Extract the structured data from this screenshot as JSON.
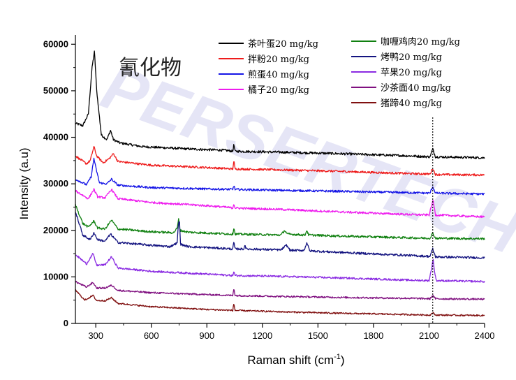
{
  "chart_data": {
    "type": "line",
    "title": "氰化物",
    "xlabel": "Raman shift (cm",
    "xlabel_sup": "-1",
    "xlabel_end": ")",
    "ylabel": "Intensity (a.u)",
    "xlim": [
      190,
      2400
    ],
    "ylim": [
      0,
      62000
    ],
    "xticks": [
      300,
      600,
      900,
      1200,
      1500,
      1800,
      2100,
      2400
    ],
    "yticks": [
      0,
      10000,
      20000,
      30000,
      40000,
      50000,
      60000
    ],
    "ytick_labels": [
      "0",
      "10000",
      "20000",
      "30000",
      "40000",
      "50000",
      "60000"
    ],
    "xtick_labels": [
      "300",
      "600",
      "900",
      "1200",
      "1500",
      "1800",
      "2100",
      "2400"
    ],
    "reference_line_x": 2120,
    "watermark": "PERSERTECH",
    "legend_left": [
      {
        "name": "茶叶蛋20 mg/kg",
        "color": "#000000"
      },
      {
        "name": "拌粉20 mg/kg",
        "color": "#ee1c1c"
      },
      {
        "name": "煎蛋40 mg/kg",
        "color": "#1414e6"
      },
      {
        "name": "橘子20 mg/kg",
        "color": "#ee1cee"
      }
    ],
    "legend_right": [
      {
        "name": "咖喱鸡肉20 mg/kg",
        "color": "#108010"
      },
      {
        "name": "烤鸭20 mg/kg",
        "color": "#141480"
      },
      {
        "name": "苹果20 mg/kg",
        "color": "#8a2be2"
      },
      {
        "name": "沙茶面40 mg/kg",
        "color": "#801080"
      },
      {
        "name": "猪蹄40 mg/kg",
        "color": "#801010"
      }
    ],
    "series": [
      {
        "name": "茶叶蛋20 mg/kg",
        "color": "#000000",
        "noise": 250,
        "points": [
          [
            190,
            43000
          ],
          [
            230,
            42500
          ],
          [
            260,
            45000
          ],
          [
            280,
            55000
          ],
          [
            293,
            58500
          ],
          [
            305,
            50000
          ],
          [
            330,
            40500
          ],
          [
            360,
            39500
          ],
          [
            380,
            41500
          ],
          [
            395,
            39500
          ],
          [
            430,
            38800
          ],
          [
            550,
            38000
          ],
          [
            800,
            37500
          ],
          [
            1000,
            37200
          ],
          [
            1040,
            37000
          ],
          [
            1046,
            38500
          ],
          [
            1052,
            37000
          ],
          [
            1300,
            36800
          ],
          [
            1600,
            36500
          ],
          [
            2000,
            36000
          ],
          [
            2105,
            35800
          ],
          [
            2120,
            37500
          ],
          [
            2135,
            35800
          ],
          [
            2400,
            35600
          ]
        ]
      },
      {
        "name": "拌粉20 mg/kg",
        "color": "#ee1c1c",
        "noise": 220,
        "points": [
          [
            190,
            36000
          ],
          [
            250,
            34300
          ],
          [
            270,
            35000
          ],
          [
            290,
            38000
          ],
          [
            305,
            36000
          ],
          [
            340,
            34500
          ],
          [
            375,
            35500
          ],
          [
            395,
            36500
          ],
          [
            420,
            34800
          ],
          [
            600,
            34000
          ],
          [
            900,
            33500
          ],
          [
            1040,
            33200
          ],
          [
            1046,
            35000
          ],
          [
            1052,
            33200
          ],
          [
            1300,
            33000
          ],
          [
            1600,
            32700
          ],
          [
            2000,
            32200
          ],
          [
            2105,
            32100
          ],
          [
            2120,
            33300
          ],
          [
            2135,
            32000
          ],
          [
            2400,
            31900
          ]
        ]
      },
      {
        "name": "煎蛋40 mg/kg",
        "color": "#1414e6",
        "noise": 220,
        "points": [
          [
            190,
            31000
          ],
          [
            250,
            29800
          ],
          [
            275,
            31500
          ],
          [
            290,
            35500
          ],
          [
            300,
            33500
          ],
          [
            320,
            30200
          ],
          [
            360,
            30000
          ],
          [
            385,
            31000
          ],
          [
            420,
            29700
          ],
          [
            600,
            29200
          ],
          [
            900,
            28900
          ],
          [
            1040,
            28800
          ],
          [
            1046,
            29700
          ],
          [
            1052,
            28800
          ],
          [
            1300,
            28600
          ],
          [
            1600,
            28400
          ],
          [
            2000,
            28100
          ],
          [
            2105,
            28000
          ],
          [
            2120,
            29400
          ],
          [
            2135,
            28000
          ],
          [
            2400,
            27800
          ]
        ]
      },
      {
        "name": "橘子20 mg/kg",
        "color": "#ee1cee",
        "noise": 220,
        "points": [
          [
            190,
            28500
          ],
          [
            260,
            26800
          ],
          [
            290,
            28800
          ],
          [
            310,
            27200
          ],
          [
            350,
            27000
          ],
          [
            385,
            28800
          ],
          [
            420,
            26800
          ],
          [
            600,
            26000
          ],
          [
            900,
            25300
          ],
          [
            1000,
            25000
          ],
          [
            1040,
            24800
          ],
          [
            1046,
            25800
          ],
          [
            1052,
            24800
          ],
          [
            1300,
            24500
          ],
          [
            1600,
            24000
          ],
          [
            2000,
            23400
          ],
          [
            2100,
            23300
          ],
          [
            2115,
            25500
          ],
          [
            2122,
            26500
          ],
          [
            2135,
            23300
          ],
          [
            2400,
            22900
          ]
        ]
      },
      {
        "name": "咖喱鸡肉20 mg/kg",
        "color": "#108010",
        "noise": 230,
        "points": [
          [
            190,
            25500
          ],
          [
            230,
            21500
          ],
          [
            260,
            20700
          ],
          [
            290,
            22000
          ],
          [
            310,
            20500
          ],
          [
            350,
            20300
          ],
          [
            385,
            22200
          ],
          [
            420,
            20300
          ],
          [
            600,
            19700
          ],
          [
            720,
            19500
          ],
          [
            740,
            20500
          ],
          [
            748,
            22500
          ],
          [
            755,
            20000
          ],
          [
            800,
            19600
          ],
          [
            1040,
            19200
          ],
          [
            1046,
            20700
          ],
          [
            1052,
            19200
          ],
          [
            1300,
            19000
          ],
          [
            1320,
            20000
          ],
          [
            1335,
            19200
          ],
          [
            1430,
            19000
          ],
          [
            1440,
            20000
          ],
          [
            1450,
            19000
          ],
          [
            1600,
            18800
          ],
          [
            2000,
            18400
          ],
          [
            2105,
            18300
          ],
          [
            2120,
            19400
          ],
          [
            2135,
            18300
          ],
          [
            2400,
            18200
          ]
        ]
      },
      {
        "name": "烤鸭20 mg/kg",
        "color": "#141480",
        "noise": 230,
        "points": [
          [
            190,
            24000
          ],
          [
            230,
            19000
          ],
          [
            270,
            18000
          ],
          [
            290,
            19500
          ],
          [
            310,
            18000
          ],
          [
            350,
            17700
          ],
          [
            380,
            19200
          ],
          [
            420,
            17400
          ],
          [
            600,
            16800
          ],
          [
            700,
            16500
          ],
          [
            740,
            17300
          ],
          [
            746,
            21500
          ],
          [
            752,
            22000
          ],
          [
            758,
            17000
          ],
          [
            800,
            16500
          ],
          [
            1000,
            16100
          ],
          [
            1040,
            16000
          ],
          [
            1046,
            17600
          ],
          [
            1052,
            16000
          ],
          [
            1100,
            16000
          ],
          [
            1106,
            17000
          ],
          [
            1112,
            16000
          ],
          [
            1300,
            15800
          ],
          [
            1330,
            16800
          ],
          [
            1350,
            15700
          ],
          [
            1425,
            15700
          ],
          [
            1440,
            17400
          ],
          [
            1455,
            15600
          ],
          [
            1600,
            15300
          ],
          [
            2000,
            14600
          ],
          [
            2105,
            14400
          ],
          [
            2120,
            16000
          ],
          [
            2135,
            14300
          ],
          [
            2400,
            14100
          ]
        ]
      },
      {
        "name": "苹果20 mg/kg",
        "color": "#8a2be2",
        "noise": 200,
        "points": [
          [
            190,
            14800
          ],
          [
            250,
            12800
          ],
          [
            285,
            15000
          ],
          [
            305,
            12500
          ],
          [
            350,
            12600
          ],
          [
            385,
            14300
          ],
          [
            420,
            11900
          ],
          [
            600,
            11200
          ],
          [
            900,
            10600
          ],
          [
            1040,
            10300
          ],
          [
            1046,
            11200
          ],
          [
            1052,
            10300
          ],
          [
            1300,
            10100
          ],
          [
            1600,
            9800
          ],
          [
            2000,
            9300
          ],
          [
            2100,
            9200
          ],
          [
            2115,
            12000
          ],
          [
            2122,
            14000
          ],
          [
            2130,
            11000
          ],
          [
            2140,
            9200
          ],
          [
            2400,
            9000
          ]
        ]
      },
      {
        "name": "沙茶面40 mg/kg",
        "color": "#801080",
        "noise": 180,
        "points": [
          [
            190,
            9000
          ],
          [
            250,
            7800
          ],
          [
            285,
            8800
          ],
          [
            305,
            7600
          ],
          [
            350,
            7600
          ],
          [
            385,
            8200
          ],
          [
            420,
            7100
          ],
          [
            600,
            6600
          ],
          [
            900,
            6200
          ],
          [
            1040,
            6000
          ],
          [
            1046,
            7700
          ],
          [
            1052,
            6000
          ],
          [
            1300,
            5800
          ],
          [
            1600,
            5600
          ],
          [
            2000,
            5400
          ],
          [
            2105,
            5300
          ],
          [
            2120,
            6000
          ],
          [
            2135,
            5300
          ],
          [
            2400,
            5200
          ]
        ]
      },
      {
        "name": "猪蹄40 mg/kg",
        "color": "#801010",
        "noise": 160,
        "points": [
          [
            190,
            7200
          ],
          [
            240,
            5000
          ],
          [
            285,
            6000
          ],
          [
            305,
            4900
          ],
          [
            350,
            4900
          ],
          [
            385,
            5500
          ],
          [
            420,
            4300
          ],
          [
            600,
            3600
          ],
          [
            900,
            3000
          ],
          [
            1040,
            2800
          ],
          [
            1046,
            4300
          ],
          [
            1052,
            2800
          ],
          [
            1300,
            2500
          ],
          [
            1600,
            2200
          ],
          [
            2000,
            1900
          ],
          [
            2105,
            1800
          ],
          [
            2120,
            2300
          ],
          [
            2135,
            1800
          ],
          [
            2400,
            1700
          ]
        ]
      }
    ]
  }
}
